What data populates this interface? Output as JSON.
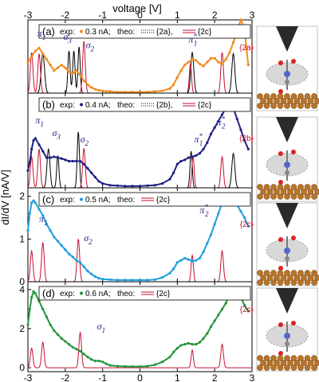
{
  "chart_data": {
    "type": "line",
    "xlabel": "voltage [V]",
    "ylabel": "dI/dV [nA/V]",
    "xlim": [
      -3,
      3
    ],
    "xticks": [
      "-3",
      "-2",
      "-1",
      "0",
      "1",
      "2",
      "3"
    ],
    "colors": {
      "orange": "#f08c1e",
      "navy": "#1f1f82",
      "cyan": "#1e9ee0",
      "green": "#23963c",
      "red": "#c8102e",
      "black": "#000000"
    },
    "panels": [
      {
        "label": "(a)",
        "exp_current": "0.3 nA",
        "exp_color": "orange",
        "legend": {
          "exp": "exp:",
          "current": "0.3 nA;",
          "theo": "theo:",
          "theo_a": "{2a}",
          "theo_b": "{2c}"
        },
        "ylim": [
          0,
          1.3
        ],
        "yticks": [],
        "exp_x": [
          -3.0,
          -2.9,
          -2.8,
          -2.7,
          -2.6,
          -2.5,
          -2.4,
          -2.3,
          -2.2,
          -2.1,
          -2.0,
          -1.9,
          -1.8,
          -1.7,
          -1.6,
          -1.5,
          -1.4,
          -1.3,
          -1.2,
          -1.1,
          -1.0,
          -0.9,
          -0.8,
          -0.6,
          -0.4,
          -0.2,
          0.0,
          0.2,
          0.4,
          0.6,
          0.8,
          0.9,
          1.0,
          1.1,
          1.2,
          1.3,
          1.4,
          1.5,
          1.6,
          1.7,
          1.8,
          1.9,
          2.0,
          2.1,
          2.2,
          2.3,
          2.4,
          2.5,
          2.6,
          2.7,
          2.8,
          2.85,
          2.9
        ],
        "exp_y": [
          0.55,
          0.65,
          0.75,
          0.8,
          0.7,
          0.6,
          0.5,
          0.4,
          0.45,
          0.5,
          0.45,
          0.38,
          0.35,
          0.4,
          0.32,
          0.22,
          0.15,
          0.1,
          0.07,
          0.05,
          0.04,
          0.03,
          0.03,
          0.02,
          0.02,
          0.02,
          0.02,
          0.02,
          0.03,
          0.04,
          0.08,
          0.15,
          0.28,
          0.4,
          0.5,
          0.55,
          0.6,
          0.58,
          0.52,
          0.48,
          0.55,
          0.62,
          0.62,
          0.55,
          0.52,
          0.6,
          0.72,
          0.9,
          1.1,
          1.3,
          1.15,
          0.8,
          0.5
        ],
        "theo_a": [
          {
            "center": -2.6,
            "height": 0.7,
            "width": 0.045
          },
          {
            "center": -1.9,
            "height": 0.75,
            "width": 0.03
          },
          {
            "center": -1.77,
            "height": 0.75,
            "width": 0.03
          },
          {
            "center": -1.63,
            "height": 0.82,
            "width": 0.03
          },
          {
            "center": 1.4,
            "height": 0.72,
            "width": 0.04
          },
          {
            "center": 2.5,
            "height": 0.7,
            "width": 0.04
          }
        ],
        "theo_b": [
          {
            "center": -2.9,
            "height": 0.72,
            "width": 0.035
          },
          {
            "center": -2.7,
            "height": 0.7,
            "width": 0.035
          },
          {
            "center": -1.5,
            "height": 0.92,
            "width": 0.035
          },
          {
            "center": 1.35,
            "height": 0.52,
            "width": 0.03
          },
          {
            "center": 2.2,
            "height": 0.72,
            "width": 0.035
          }
        ],
        "annotations": [
          {
            "base": "π",
            "sub": "1",
            "sup": "",
            "color": "navy",
            "x": -2.75,
            "y": 1.0
          },
          {
            "base": "σ",
            "sub": "3",
            "sup": "",
            "color": "navy",
            "x": -2.05,
            "y": 0.95
          },
          {
            "base": "σ",
            "sub": "2",
            "sup": "",
            "color": "navy",
            "x": -1.45,
            "y": 0.8
          },
          {
            "base": "π",
            "sub": "1",
            "sup": "*",
            "color": "navy",
            "x": 1.3,
            "y": 0.9
          }
        ]
      },
      {
        "label": "(b)",
        "exp_current": "0.4 nA",
        "exp_color": "navy",
        "legend": {
          "exp": "exp:",
          "current": "0.4 nA;",
          "theo": "theo:",
          "theo_a": "{2b}",
          "theo_b": "{2c}"
        },
        "ylim": [
          0,
          2.2
        ],
        "yticks": [],
        "exp_x": [
          -3.0,
          -2.95,
          -2.9,
          -2.85,
          -2.8,
          -2.7,
          -2.6,
          -2.5,
          -2.4,
          -2.3,
          -2.2,
          -2.1,
          -2.0,
          -1.9,
          -1.8,
          -1.7,
          -1.6,
          -1.5,
          -1.4,
          -1.3,
          -1.2,
          -1.1,
          -1.0,
          -0.8,
          -0.6,
          -0.4,
          -0.2,
          0.0,
          0.2,
          0.4,
          0.6,
          0.8,
          0.9,
          1.0,
          1.1,
          1.2,
          1.3,
          1.4,
          1.5,
          1.6,
          1.7,
          1.8,
          1.9,
          2.0,
          2.1,
          2.2,
          2.3,
          2.4,
          2.5,
          2.6,
          2.7,
          2.8,
          2.9
        ],
        "exp_y": [
          0.4,
          0.6,
          0.9,
          1.1,
          1.15,
          1.0,
          0.85,
          0.7,
          0.7,
          0.72,
          0.7,
          0.68,
          0.65,
          0.62,
          0.62,
          0.62,
          0.62,
          0.55,
          0.45,
          0.35,
          0.25,
          0.15,
          0.1,
          0.06,
          0.05,
          0.04,
          0.04,
          0.04,
          0.05,
          0.06,
          0.1,
          0.2,
          0.35,
          0.55,
          0.62,
          0.65,
          0.7,
          0.72,
          0.75,
          0.8,
          0.9,
          1.05,
          1.25,
          1.4,
          1.55,
          1.7,
          1.85,
          1.95,
          1.85,
          1.6,
          1.35,
          1.1,
          0.9
        ],
        "theo_a": [
          {
            "center": -2.45,
            "height": 0.9,
            "width": 0.04
          },
          {
            "center": -2.2,
            "height": 0.75,
            "width": 0.03
          },
          {
            "center": -1.65,
            "height": 1.3,
            "width": 0.03
          },
          {
            "center": 1.37,
            "height": 0.85,
            "width": 0.03
          },
          {
            "center": 2.5,
            "height": 0.8,
            "width": 0.04
          }
        ],
        "theo_b": [
          {
            "center": -2.9,
            "height": 0.72,
            "width": 0.035
          },
          {
            "center": -2.7,
            "height": 0.9,
            "width": 0.035
          },
          {
            "center": -1.5,
            "height": 0.92,
            "width": 0.035
          },
          {
            "center": 1.42,
            "height": 0.75,
            "width": 0.03
          },
          {
            "center": 2.2,
            "height": 0.72,
            "width": 0.035
          }
        ],
        "annotations": [
          {
            "base": "π",
            "sub": "1",
            "sup": "",
            "color": "navy",
            "x": -2.8,
            "y": 1.5
          },
          {
            "base": "σ",
            "sub": "3",
            "sup": "",
            "color": "navy",
            "x": -2.35,
            "y": 1.2
          },
          {
            "base": "σ",
            "sub": "2",
            "sup": "",
            "color": "navy",
            "x": -1.6,
            "y": 1.05
          },
          {
            "base": "π",
            "sub": "2",
            "sup": "*",
            "color": "navy",
            "x": 2.05,
            "y": 1.45
          },
          {
            "base": "π",
            "sub": "1",
            "sup": "*",
            "color": "navy",
            "x": 1.45,
            "y": 1.05
          }
        ]
      },
      {
        "label": "(c)",
        "exp_current": "0.5 nA",
        "exp_color": "cyan",
        "legend": {
          "exp": "exp:",
          "current": "0.5 nA;",
          "theo": "theo:",
          "theo_b": "{2c}"
        },
        "ylim": [
          0,
          2.2
        ],
        "yticks": [
          "0",
          "1",
          "2"
        ],
        "exp_x": [
          -3.0,
          -2.95,
          -2.9,
          -2.85,
          -2.8,
          -2.7,
          -2.6,
          -2.5,
          -2.4,
          -2.3,
          -2.2,
          -2.1,
          -2.0,
          -1.9,
          -1.8,
          -1.7,
          -1.6,
          -1.5,
          -1.4,
          -1.3,
          -1.2,
          -1.1,
          -1.0,
          -0.8,
          -0.6,
          -0.4,
          -0.2,
          0.0,
          0.2,
          0.4,
          0.6,
          0.8,
          0.9,
          1.0,
          1.1,
          1.2,
          1.3,
          1.4,
          1.5,
          1.6,
          1.7,
          1.8,
          1.9,
          2.0,
          2.1,
          2.2,
          2.3,
          2.4,
          2.5,
          2.6,
          2.7,
          2.8,
          2.9
        ],
        "exp_y": [
          1.2,
          1.6,
          1.85,
          1.9,
          1.85,
          1.7,
          1.55,
          1.35,
          1.2,
          1.05,
          0.95,
          0.85,
          0.75,
          0.65,
          0.58,
          0.5,
          0.45,
          0.35,
          0.25,
          0.18,
          0.12,
          0.08,
          0.06,
          0.05,
          0.04,
          0.04,
          0.04,
          0.04,
          0.04,
          0.05,
          0.1,
          0.2,
          0.3,
          0.45,
          0.5,
          0.55,
          0.52,
          0.48,
          0.5,
          0.55,
          0.7,
          0.9,
          1.1,
          1.35,
          1.6,
          1.85,
          1.95,
          2.0,
          1.95,
          1.8,
          1.65,
          1.5,
          1.3
        ],
        "theo_b": [
          {
            "center": -2.9,
            "height": 0.72,
            "width": 0.035
          },
          {
            "center": -2.6,
            "height": 0.92,
            "width": 0.035
          },
          {
            "center": -1.65,
            "height": 1.0,
            "width": 0.035
          },
          {
            "center": 1.4,
            "height": 0.62,
            "width": 0.03
          },
          {
            "center": 2.2,
            "height": 0.72,
            "width": 0.035
          }
        ],
        "annotations": [
          {
            "base": "π",
            "sub": "1",
            "sup": "",
            "color": "navy",
            "x": -2.7,
            "y": 1.4
          },
          {
            "base": "σ",
            "sub": "2",
            "sup": "",
            "color": "navy",
            "x": -1.5,
            "y": 0.95
          },
          {
            "base": "π",
            "sub": "2",
            "sup": "*",
            "color": "navy",
            "x": 1.6,
            "y": 1.6
          }
        ]
      },
      {
        "label": "(d)",
        "exp_current": "0.6 nA",
        "exp_color": "green",
        "legend": {
          "exp": "exp:",
          "current": "0.6 nA;",
          "theo": "theo:",
          "theo_b": "{2c}"
        },
        "ylim": [
          -0.2,
          4.4
        ],
        "yticks": [
          "0",
          "2",
          "4"
        ],
        "exp_x": [
          -3.0,
          -2.95,
          -2.9,
          -2.85,
          -2.8,
          -2.7,
          -2.6,
          -2.5,
          -2.4,
          -2.3,
          -2.2,
          -2.1,
          -2.0,
          -1.9,
          -1.8,
          -1.7,
          -1.6,
          -1.5,
          -1.4,
          -1.3,
          -1.2,
          -1.1,
          -1.0,
          -0.9,
          -0.8,
          -0.6,
          -0.4,
          -0.2,
          0.0,
          0.2,
          0.4,
          0.6,
          0.8,
          0.9,
          1.0,
          1.1,
          1.2,
          1.3,
          1.4,
          1.5,
          1.6,
          1.7,
          1.8,
          1.9,
          2.0,
          2.1,
          2.2,
          2.3,
          2.4,
          2.5,
          2.6,
          2.7,
          2.8,
          2.9
        ],
        "exp_y": [
          2.2,
          3.0,
          3.6,
          3.9,
          3.8,
          3.4,
          3.0,
          2.6,
          2.2,
          1.9,
          1.7,
          1.5,
          1.35,
          1.2,
          1.05,
          0.95,
          0.85,
          0.7,
          0.55,
          0.42,
          0.35,
          0.35,
          0.3,
          0.2,
          0.12,
          0.08,
          0.07,
          0.06,
          0.06,
          0.08,
          0.15,
          0.3,
          0.55,
          0.8,
          1.0,
          1.15,
          1.2,
          1.25,
          1.2,
          1.2,
          1.3,
          1.5,
          1.75,
          2.1,
          2.4,
          2.7,
          3.0,
          3.3,
          3.8,
          4.1,
          3.95,
          3.6,
          3.2,
          2.9
        ],
        "theo_b": [
          {
            "center": -2.9,
            "height": 1.0,
            "width": 0.035
          },
          {
            "center": -2.6,
            "height": 1.3,
            "width": 0.035
          },
          {
            "center": -1.6,
            "height": 1.8,
            "width": 0.035
          },
          {
            "center": 1.4,
            "height": 0.9,
            "width": 0.03
          },
          {
            "center": 2.2,
            "height": 1.2,
            "width": 0.035
          }
        ],
        "annotations": [
          {
            "base": "σ",
            "sub": "1",
            "sup": "",
            "color": "navy",
            "x": -1.15,
            "y": 1.95
          }
        ]
      }
    ],
    "molecule_tags": [
      "{2a}",
      "{2b}",
      "{2c}",
      "{2c}"
    ]
  }
}
